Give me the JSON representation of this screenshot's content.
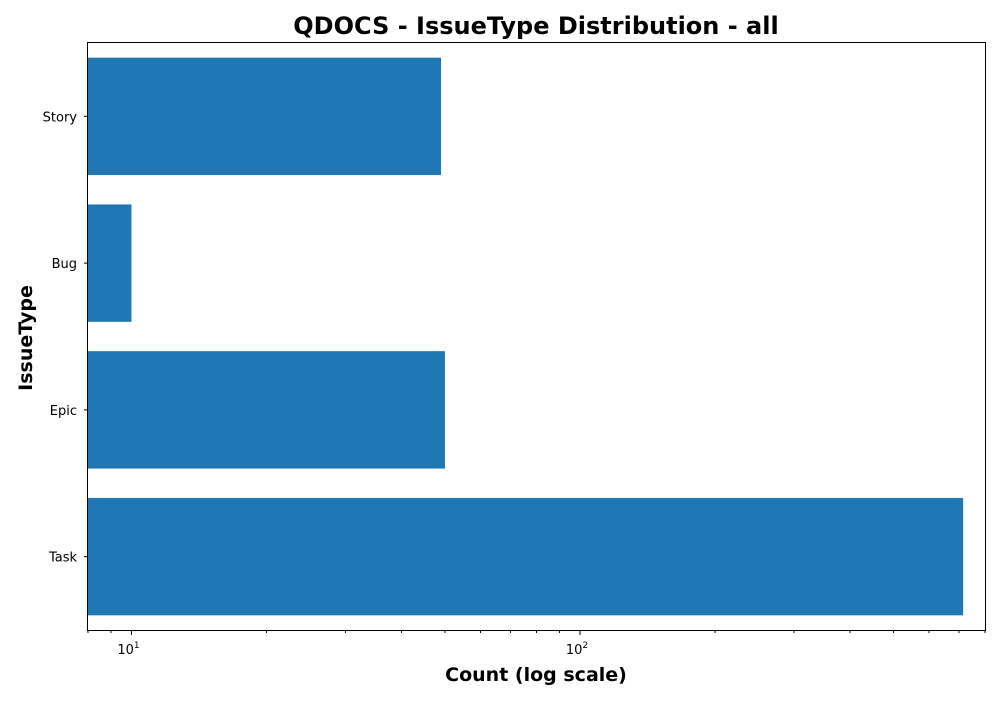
{
  "chart_data": {
    "type": "bar",
    "orientation": "horizontal",
    "title": "QDOCS - IssueType Distribution - all",
    "xlabel": "Count (log scale)",
    "ylabel": "IssueType",
    "x_scale": "log",
    "xlim": [
      8.0,
      800.0
    ],
    "categories": [
      "Task",
      "Epic",
      "Bug",
      "Story"
    ],
    "values": [
      715,
      50,
      10,
      49
    ],
    "bar_color": "#1f77b4",
    "x_ticks": [
      {
        "value": 10,
        "base": "10",
        "exp": "1"
      },
      {
        "value": 100,
        "base": "10",
        "exp": "2"
      }
    ],
    "grid": false,
    "legend": "none"
  }
}
